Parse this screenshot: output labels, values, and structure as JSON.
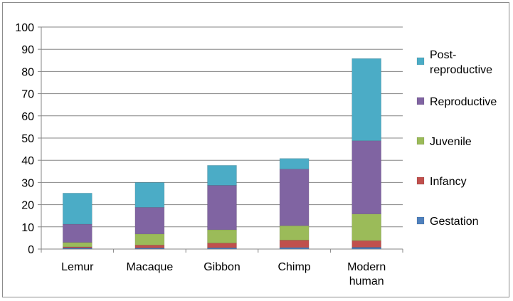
{
  "chart_data": {
    "type": "bar",
    "stacked": true,
    "categories": [
      [
        "Lemur"
      ],
      [
        "Macaque"
      ],
      [
        "Gibbon"
      ],
      [
        "Chimp"
      ],
      [
        "Modern",
        "human"
      ]
    ],
    "ylim": [
      0,
      100
    ],
    "yticks": [
      0,
      10,
      20,
      30,
      40,
      50,
      60,
      70,
      80,
      90,
      100
    ],
    "grid": true,
    "legend_position": "right",
    "series": [
      {
        "name": "Gestation",
        "color": "#4f81bd",
        "values": [
          0.5,
          0.5,
          0.6,
          0.7,
          0.8
        ]
      },
      {
        "name": "Infancy",
        "color": "#c0504d",
        "values": [
          0.5,
          1.3,
          2.1,
          3.3,
          3.0
        ]
      },
      {
        "name": "Juvenile",
        "color": "#9bbb59",
        "values": [
          2.0,
          5.0,
          6.0,
          6.5,
          12.0
        ]
      },
      {
        "name": "Reproductive",
        "color": "#8064a2",
        "values": [
          8.2,
          12.0,
          20.0,
          25.5,
          33.0
        ]
      },
      {
        "name": "Post-reproductive",
        "legend_lines": [
          "Post-",
          "reproductive"
        ],
        "color": "#4bacc6",
        "values": [
          14.0,
          11.2,
          9.0,
          4.8,
          37.0
        ]
      }
    ]
  }
}
